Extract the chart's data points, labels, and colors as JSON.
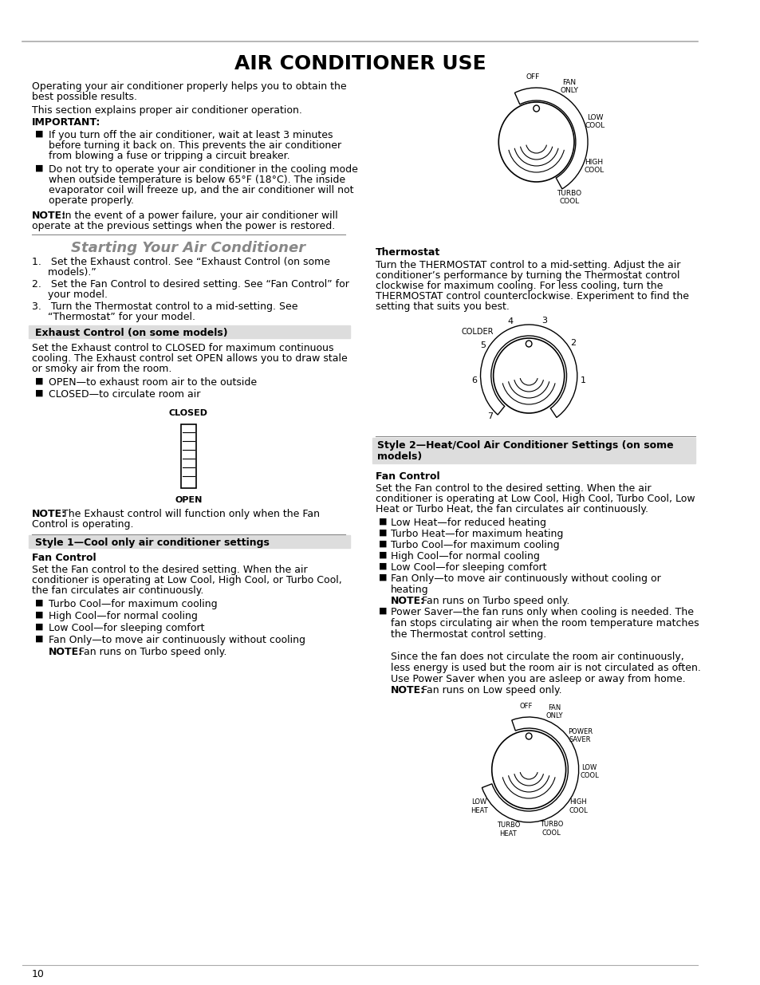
{
  "title": "AIR CONDITIONER USE",
  "page_number": "10",
  "background_color": "#ffffff",
  "text_color": "#000000",
  "body_fontsize": 9,
  "thermostat_text": [
    "Turn the THERMOSTAT control to a mid-setting. Adjust the air",
    "conditioner’s performance by turning the Thermostat control",
    "clockwise for maximum cooling. For less cooling, turn the",
    "THERMOSTAT control counterclockwise. Experiment to find the",
    "setting that suits you best."
  ],
  "fan_text2": [
    "Set the Fan control to the desired setting. When the air",
    "conditioner is operating at Low Cool, High Cool, Turbo Cool, Low",
    "Heat or Turbo Heat, the fan circulates air continuously.",
    "■  Low Heat—for reduced heating",
    "■  Turbo Heat—for maximum heating",
    "■  Turbo Cool—for maximum cooling",
    "■  High Cool—for normal cooling",
    "■  Low Cool—for sleeping comfort",
    "■  Fan Only—to move air continuously without cooling or",
    "     heating",
    "     NOTE: Fan runs on Turbo speed only.",
    "■  Power Saver—the fan runs only when cooling is needed. The",
    "     fan stops circulating air when the room temperature matches",
    "     the Thermostat control setting.",
    "",
    "     Since the fan does not circulate the room air continuously,",
    "     less energy is used but the room air is not circulated as often.",
    "     Use Power Saver when you are asleep or away from home.",
    "     NOTE: Fan runs on Low speed only."
  ]
}
